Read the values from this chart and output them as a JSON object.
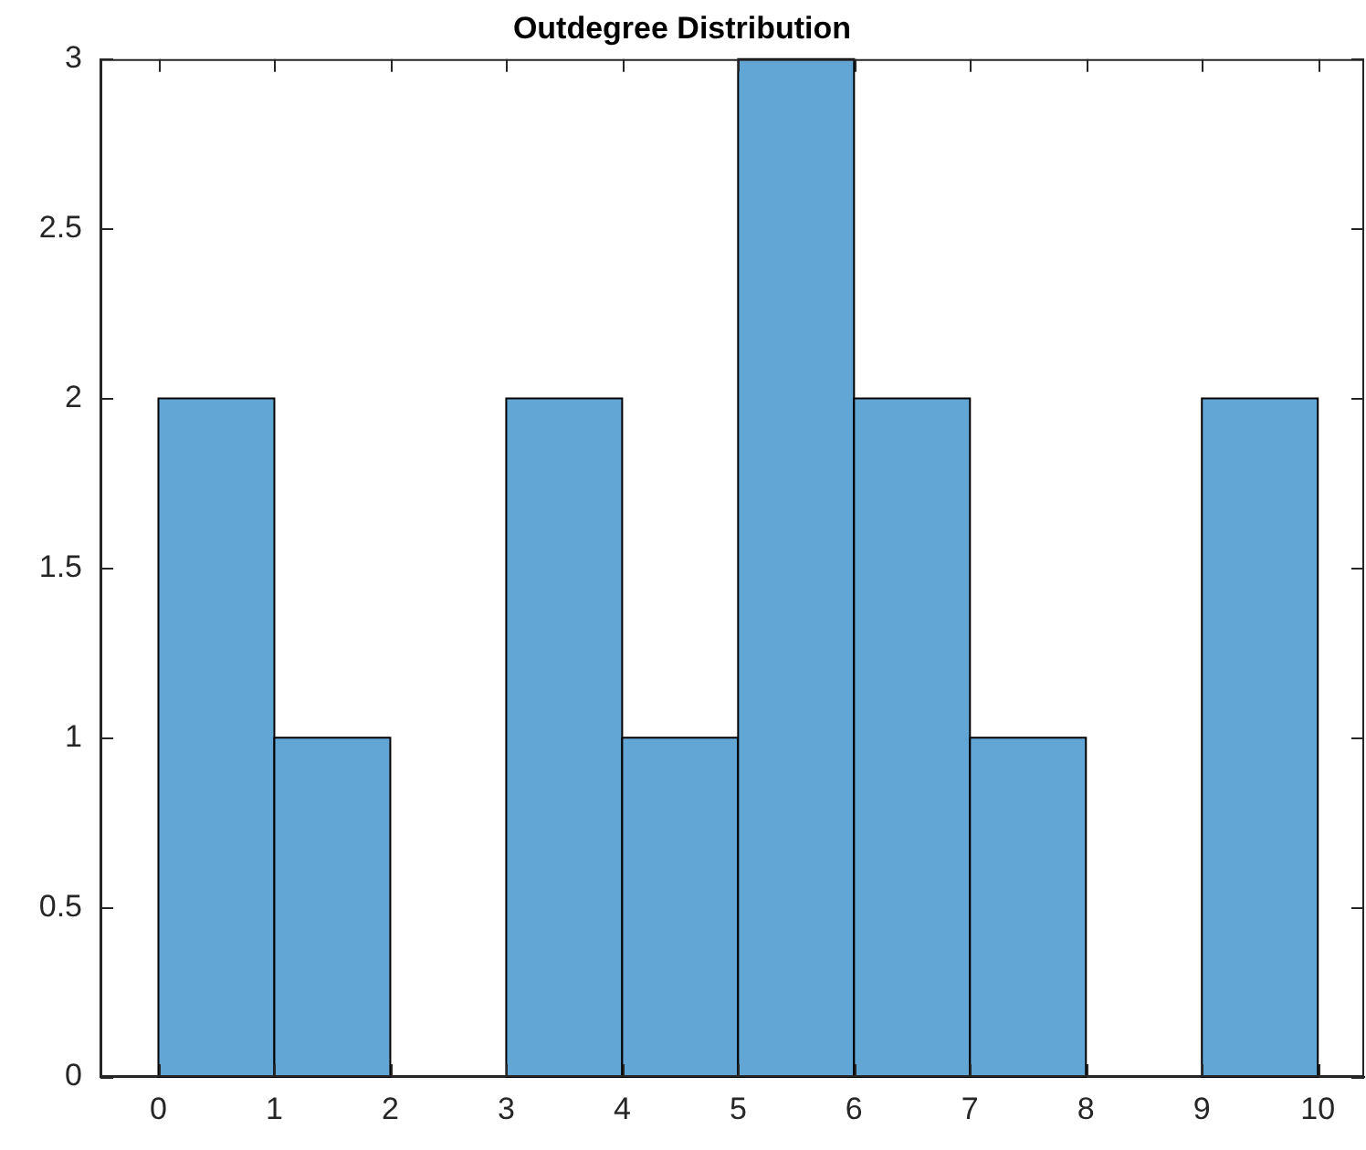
{
  "chart_data": {
    "type": "histogram",
    "title": "Outdegree Distribution",
    "bins": [
      0,
      1,
      2,
      3,
      4,
      5,
      6,
      7,
      8,
      9,
      10
    ],
    "values": [
      2,
      1,
      0,
      2,
      1,
      3,
      2,
      1,
      0,
      2
    ],
    "color": "#62a6d6",
    "xlim": [
      -0.5,
      10.4
    ],
    "xticks": [
      0,
      1,
      2,
      3,
      4,
      5,
      6,
      7,
      8,
      9,
      10
    ],
    "ylim": [
      0,
      3
    ],
    "yticks": [
      0,
      0.5,
      1,
      1.5,
      2,
      2.5,
      3
    ],
    "grid": false,
    "legend": false
  }
}
